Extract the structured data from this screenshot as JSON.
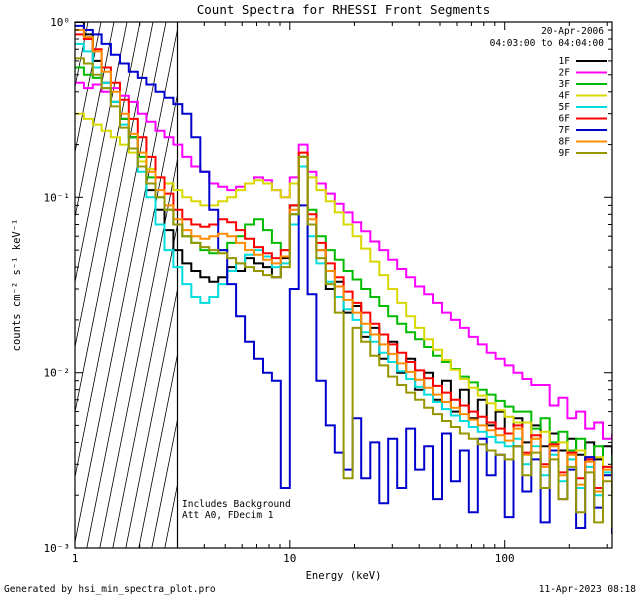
{
  "header": {
    "title": "Count Spectra for RHESSI Front Segments"
  },
  "observation": {
    "date": "20-Apr-2006",
    "time_range": "04:03:00 to 04:04:00"
  },
  "annotations": {
    "line1": "Includes Background",
    "line2": "Att A0, FDecim 1"
  },
  "footer": {
    "generated_by": "Generated by hsi_min_spectra_plot.pro",
    "timestamp": "11-Apr-2023 08:18"
  },
  "chart_data": {
    "type": "line",
    "title": "Count Spectra for RHESSI Front Segments",
    "xlabel": "Energy (keV)",
    "ylabel": "counts cm⁻² s⁻¹ keV⁻¹",
    "x_scale": "log",
    "y_scale": "log",
    "xlim": [
      1,
      316
    ],
    "ylim": [
      0.001,
      1
    ],
    "grid": false,
    "legend_position": "top-right-inside",
    "hatch_end": 3,
    "x_tick_labels": [
      "1",
      "10",
      "100"
    ],
    "y_tick_labels": [
      "10⁰",
      "10⁻¹",
      "10⁻²",
      "10⁻³"
    ],
    "x": [
      1.0,
      1.1,
      1.21,
      1.33,
      1.47,
      1.62,
      1.78,
      1.96,
      2.15,
      2.37,
      2.61,
      2.87,
      3.16,
      3.48,
      3.83,
      4.22,
      4.64,
      5.11,
      5.62,
      6.19,
      6.81,
      7.5,
      8.25,
      9.08,
      10.0,
      11.0,
      12.1,
      13.3,
      14.7,
      16.2,
      17.8,
      19.6,
      21.5,
      23.7,
      26.1,
      28.7,
      31.6,
      34.8,
      38.3,
      42.2,
      46.4,
      51.1,
      56.2,
      61.9,
      68.1,
      75.0,
      82.5,
      90.8,
      100,
      110,
      121,
      133,
      147,
      162,
      178,
      196,
      215,
      237,
      261,
      287,
      316
    ],
    "series": [
      {
        "name": "1F",
        "color": "#000000",
        "values": [
          1.0,
          0.85,
          0.6,
          0.45,
          0.35,
          0.28,
          0.22,
          0.15,
          0.11,
          0.085,
          0.065,
          0.05,
          0.042,
          0.038,
          0.035,
          0.033,
          0.035,
          0.04,
          0.038,
          0.045,
          0.042,
          0.04,
          0.035,
          0.045,
          0.09,
          0.17,
          0.07,
          0.05,
          0.03,
          0.033,
          0.022,
          0.024,
          0.016,
          0.018,
          0.012,
          0.015,
          0.01,
          0.012,
          0.008,
          0.01,
          0.007,
          0.009,
          0.006,
          0.008,
          0.0055,
          0.007,
          0.005,
          0.006,
          0.0045,
          0.0055,
          0.004,
          0.005,
          0.0038,
          0.0045,
          0.0036,
          0.0042,
          0.0034,
          0.004,
          0.0032,
          0.0038,
          0.003
        ]
      },
      {
        "name": "2F",
        "color": "#ff00ff",
        "values": [
          0.45,
          0.42,
          0.44,
          0.4,
          0.42,
          0.38,
          0.35,
          0.3,
          0.27,
          0.24,
          0.22,
          0.2,
          0.17,
          0.15,
          0.14,
          0.12,
          0.115,
          0.11,
          0.115,
          0.12,
          0.13,
          0.125,
          0.11,
          0.1,
          0.13,
          0.2,
          0.14,
          0.12,
          0.105,
          0.092,
          0.082,
          0.072,
          0.064,
          0.056,
          0.05,
          0.044,
          0.039,
          0.035,
          0.031,
          0.028,
          0.025,
          0.022,
          0.02,
          0.018,
          0.016,
          0.0145,
          0.013,
          0.012,
          0.011,
          0.01,
          0.0092,
          0.0085,
          0.0085,
          0.0065,
          0.0072,
          0.0055,
          0.006,
          0.0048,
          0.0052,
          0.0042,
          0.0045
        ]
      },
      {
        "name": "3F",
        "color": "#00bb00",
        "values": [
          0.55,
          0.5,
          0.48,
          0.42,
          0.35,
          0.28,
          0.22,
          0.17,
          0.13,
          0.1,
          0.085,
          0.07,
          0.06,
          0.055,
          0.05,
          0.048,
          0.05,
          0.055,
          0.06,
          0.07,
          0.075,
          0.065,
          0.055,
          0.05,
          0.08,
          0.17,
          0.085,
          0.06,
          0.05,
          0.044,
          0.038,
          0.034,
          0.03,
          0.027,
          0.024,
          0.021,
          0.019,
          0.017,
          0.0155,
          0.014,
          0.0125,
          0.0115,
          0.0105,
          0.0095,
          0.0088,
          0.008,
          0.0075,
          0.0069,
          0.0064,
          0.006,
          0.006,
          0.0048,
          0.0055,
          0.004,
          0.0046,
          0.0036,
          0.0042,
          0.0032,
          0.0038,
          0.0029,
          0.0034
        ]
      },
      {
        "name": "4F",
        "color": "#d8d800",
        "values": [
          0.3,
          0.28,
          0.26,
          0.24,
          0.22,
          0.2,
          0.18,
          0.16,
          0.145,
          0.13,
          0.12,
          0.11,
          0.1,
          0.095,
          0.09,
          0.09,
          0.095,
          0.1,
          0.11,
          0.12,
          0.125,
          0.12,
          0.11,
          0.1,
          0.12,
          0.18,
          0.13,
          0.11,
          0.095,
          0.082,
          0.07,
          0.06,
          0.051,
          0.043,
          0.036,
          0.03,
          0.025,
          0.021,
          0.018,
          0.0155,
          0.0135,
          0.0118,
          0.0104,
          0.0092,
          0.0082,
          0.0074,
          0.0067,
          0.0061,
          0.0056,
          0.0052,
          0.0052,
          0.0042,
          0.0046,
          0.0036,
          0.004,
          0.0032,
          0.0036,
          0.0029,
          0.0033,
          0.0026,
          0.003
        ]
      },
      {
        "name": "5F",
        "color": "#00dddd",
        "values": [
          0.75,
          0.68,
          0.55,
          0.45,
          0.35,
          0.26,
          0.19,
          0.14,
          0.1,
          0.07,
          0.05,
          0.04,
          0.032,
          0.027,
          0.025,
          0.027,
          0.032,
          0.038,
          0.042,
          0.047,
          0.05,
          0.046,
          0.04,
          0.042,
          0.07,
          0.15,
          0.06,
          0.042,
          0.033,
          0.027,
          0.023,
          0.02,
          0.017,
          0.015,
          0.013,
          0.0115,
          0.0102,
          0.0092,
          0.0083,
          0.0075,
          0.0068,
          0.0062,
          0.0057,
          0.0053,
          0.0049,
          0.0046,
          0.0043,
          0.004,
          0.0038,
          0.0042,
          0.003,
          0.0038,
          0.0026,
          0.0034,
          0.0024,
          0.0032,
          0.0022,
          0.0029,
          0.002,
          0.0027,
          0.0019
        ]
      },
      {
        "name": "6F",
        "color": "#ff0000",
        "values": [
          0.85,
          0.8,
          0.7,
          0.55,
          0.45,
          0.36,
          0.28,
          0.22,
          0.17,
          0.13,
          0.105,
          0.085,
          0.075,
          0.07,
          0.068,
          0.07,
          0.075,
          0.072,
          0.065,
          0.058,
          0.052,
          0.048,
          0.045,
          0.05,
          0.09,
          0.18,
          0.08,
          0.055,
          0.042,
          0.035,
          0.029,
          0.025,
          0.022,
          0.019,
          0.0165,
          0.0145,
          0.013,
          0.0115,
          0.0103,
          0.0093,
          0.0084,
          0.0077,
          0.007,
          0.0065,
          0.006,
          0.0056,
          0.0052,
          0.0048,
          0.0045,
          0.005,
          0.0035,
          0.0044,
          0.003,
          0.0039,
          0.0027,
          0.0035,
          0.0025,
          0.0032,
          0.0022,
          0.0029,
          0.0021
        ]
      },
      {
        "name": "7F",
        "color": "#0000cd",
        "values": [
          0.95,
          0.9,
          0.85,
          0.75,
          0.65,
          0.58,
          0.52,
          0.48,
          0.44,
          0.4,
          0.37,
          0.34,
          0.3,
          0.22,
          0.14,
          0.085,
          0.05,
          0.032,
          0.021,
          0.015,
          0.012,
          0.01,
          0.009,
          0.0022,
          0.03,
          0.09,
          0.028,
          0.009,
          0.005,
          0.0035,
          0.0028,
          0.0055,
          0.0025,
          0.004,
          0.0018,
          0.0042,
          0.0022,
          0.0048,
          0.0028,
          0.0038,
          0.0019,
          0.0045,
          0.0024,
          0.0036,
          0.0016,
          0.0042,
          0.0026,
          0.0034,
          0.0015,
          0.0038,
          0.0021,
          0.0032,
          0.0014,
          0.0036,
          0.0019,
          0.0028,
          0.0013,
          0.0033,
          0.0017,
          0.0026,
          0.0012
        ]
      },
      {
        "name": "8F",
        "color": "#ff8c00",
        "values": [
          0.9,
          0.82,
          0.68,
          0.52,
          0.4,
          0.3,
          0.23,
          0.18,
          0.14,
          0.11,
          0.09,
          0.075,
          0.065,
          0.06,
          0.058,
          0.06,
          0.062,
          0.06,
          0.055,
          0.05,
          0.047,
          0.044,
          0.042,
          0.046,
          0.085,
          0.17,
          0.075,
          0.05,
          0.038,
          0.031,
          0.026,
          0.022,
          0.019,
          0.0165,
          0.0145,
          0.0128,
          0.0113,
          0.0101,
          0.0091,
          0.0082,
          0.0075,
          0.0068,
          0.0063,
          0.0058,
          0.0054,
          0.005,
          0.0047,
          0.0044,
          0.0041,
          0.0048,
          0.0034,
          0.0042,
          0.0029,
          0.0038,
          0.0026,
          0.0034,
          0.0023,
          0.0031,
          0.0021,
          0.0028,
          0.0019
        ]
      },
      {
        "name": "9F",
        "color": "#969600",
        "values": [
          0.62,
          0.58,
          0.5,
          0.42,
          0.33,
          0.25,
          0.19,
          0.15,
          0.12,
          0.1,
          0.085,
          0.07,
          0.06,
          0.055,
          0.052,
          0.05,
          0.048,
          0.045,
          0.042,
          0.04,
          0.038,
          0.036,
          0.035,
          0.04,
          0.08,
          0.17,
          0.07,
          0.045,
          0.032,
          0.022,
          0.0025,
          0.018,
          0.015,
          0.0125,
          0.011,
          0.0095,
          0.0085,
          0.0077,
          0.007,
          0.0063,
          0.0058,
          0.0053,
          0.0049,
          0.0045,
          0.0042,
          0.0039,
          0.0036,
          0.0034,
          0.0032,
          0.0038,
          0.0026,
          0.0035,
          0.0022,
          0.0032,
          0.0019,
          0.0029,
          0.0016,
          0.0027,
          0.0014,
          0.0024,
          0.0013
        ]
      }
    ]
  }
}
